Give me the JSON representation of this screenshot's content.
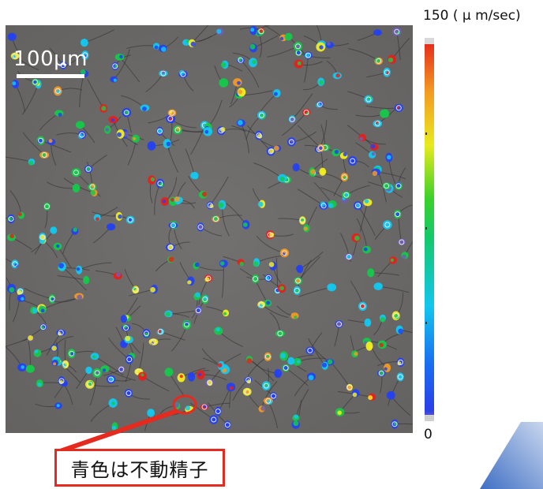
{
  "micrograph": {
    "scale_bar_label": "100μm"
  },
  "colorbar": {
    "max_label": "150 ( μ m/sec)",
    "min_label": "0",
    "stops": [
      "#6f5fb0",
      "#2541f0",
      "#13c8f0",
      "#16c84a",
      "#f2ee20",
      "#f39a22",
      "#e8201b"
    ]
  },
  "callout": {
    "text": "青色は不動精子",
    "color": "#e52a1f"
  }
}
